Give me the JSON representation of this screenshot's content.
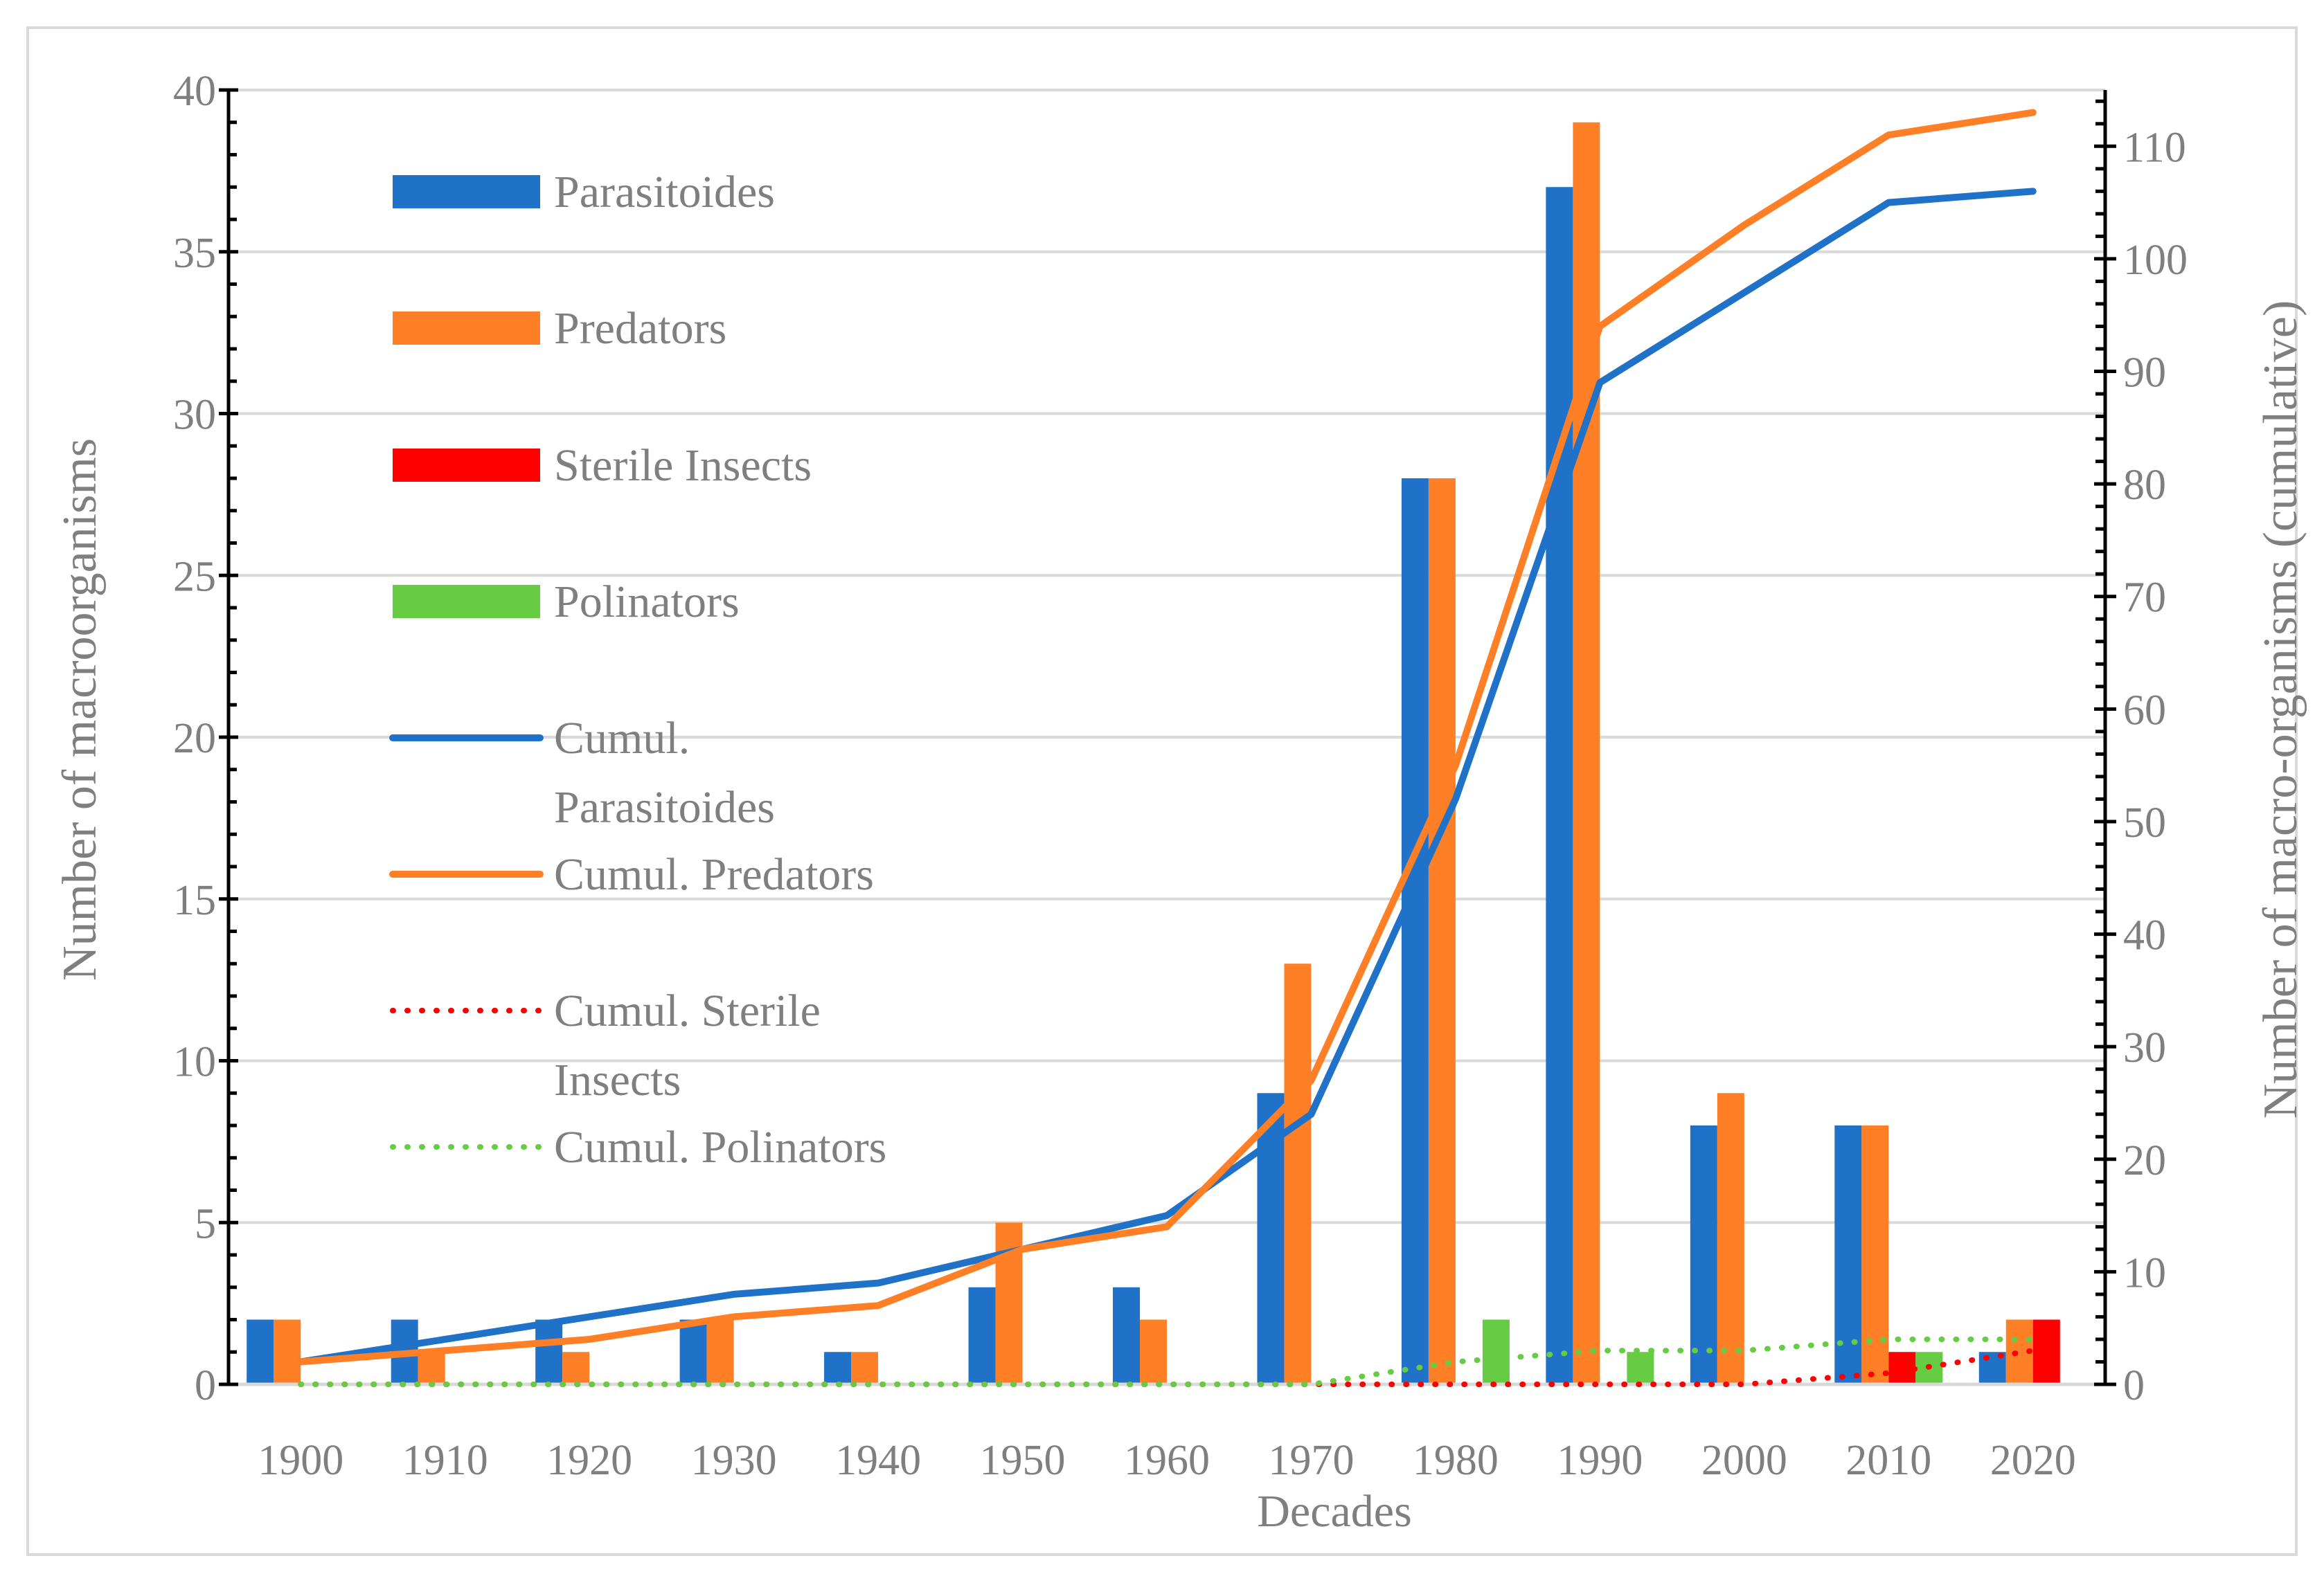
{
  "chart_data": {
    "type": "bar",
    "title": "",
    "xlabel": "Decades",
    "ylabel": "Number of macroorganisms",
    "y2label": "Number of macro-organisms (cumulative)",
    "ylim": [
      0,
      40
    ],
    "y2lim": [
      0,
      115
    ],
    "yticks": [
      0,
      5,
      10,
      15,
      20,
      25,
      30,
      35,
      40
    ],
    "y2ticks": [
      0,
      10,
      20,
      30,
      40,
      50,
      60,
      70,
      80,
      90,
      100,
      110
    ],
    "categories": [
      "1900",
      "1910",
      "1920",
      "1930",
      "1940",
      "1950",
      "1960",
      "1970",
      "1980",
      "1990",
      "2000",
      "2010",
      "2020"
    ],
    "bar_series": [
      {
        "name": "Parasitoides",
        "color": "#1f72c8",
        "values": [
          2,
          2,
          2,
          2,
          1,
          3,
          3,
          9,
          28,
          37,
          8,
          8,
          1
        ]
      },
      {
        "name": "Predators",
        "color": "#ff7f27",
        "values": [
          2,
          1,
          1,
          2,
          1,
          5,
          2,
          13,
          28,
          39,
          9,
          8,
          2
        ]
      },
      {
        "name": "Sterile Insects",
        "color": "#ff0000",
        "values": [
          0,
          0,
          0,
          0,
          0,
          0,
          0,
          0,
          0,
          0,
          0,
          1,
          2
        ]
      },
      {
        "name": "Polinators",
        "color": "#66cc44",
        "values": [
          0,
          0,
          0,
          0,
          0,
          0,
          0,
          0,
          2,
          1,
          0,
          1,
          0
        ]
      }
    ],
    "line_series": [
      {
        "name": "Cumul. Parasitoides",
        "label_lines": [
          "Cumul.",
          "Parasitoides"
        ],
        "color": "#1f72c8",
        "style": "solid",
        "axis": "right",
        "values": [
          2,
          4,
          6,
          8,
          9,
          12,
          15,
          24,
          52,
          89,
          97,
          105,
          106
        ]
      },
      {
        "name": "Cumul. Predators",
        "label_lines": [
          "Cumul. Predators"
        ],
        "color": "#ff7f27",
        "style": "solid",
        "axis": "right",
        "values": [
          2,
          3,
          4,
          6,
          7,
          12,
          14,
          27,
          55,
          94,
          103,
          111,
          113
        ]
      },
      {
        "name": "Cumul. Sterile Insects",
        "label_lines": [
          "Cumul. Sterile",
          "Insects"
        ],
        "color": "#ff0000",
        "style": "dotted",
        "axis": "right",
        "values": [
          0,
          0,
          0,
          0,
          0,
          0,
          0,
          0,
          0,
          0,
          0,
          1,
          3
        ]
      },
      {
        "name": "Cumul. Polinators",
        "label_lines": [
          "Cumul. Polinators"
        ],
        "color": "#66cc44",
        "style": "dotted",
        "axis": "right",
        "values": [
          0,
          0,
          0,
          0,
          0,
          0,
          0,
          0,
          2,
          3,
          3,
          4,
          4
        ]
      }
    ],
    "legend": {
      "position": "top-left inside"
    },
    "grid": true
  }
}
